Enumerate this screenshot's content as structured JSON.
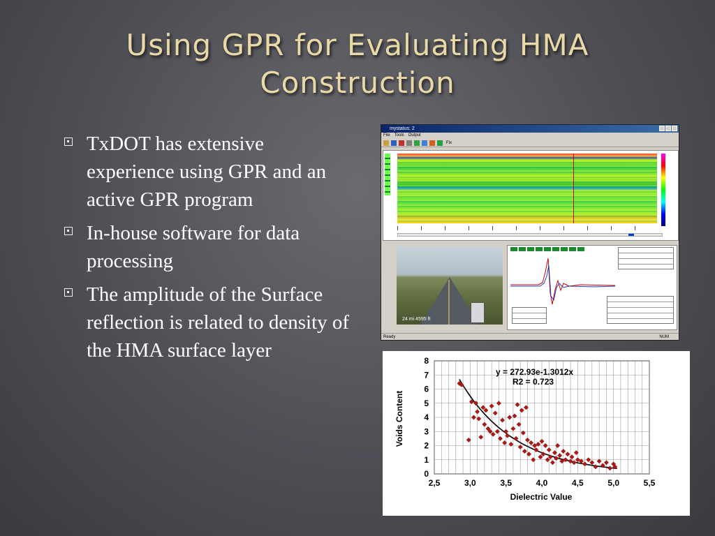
{
  "slide": {
    "title": "Using GPR for Evaluating HMA Construction",
    "bullets": [
      "TxDOT has extensive experience using GPR and an active GPR program",
      "In-house software for data processing",
      "The amplitude of the Surface reflection is related to density of the HMA surface layer"
    ]
  },
  "software": {
    "window_title": "mystatus: 2",
    "menu": [
      "File",
      "Tools",
      "Output"
    ],
    "toolbar_label": "Fix",
    "photo_caption": "24 mi  4595 ft",
    "status_left": "Ready",
    "status_right": "NUM",
    "colors": {
      "titlebar": "#0a246a",
      "window": "#d4d0c8"
    }
  },
  "chart_data": {
    "type": "scatter",
    "title": "",
    "xlabel": "Dielectric Value",
    "ylabel": "Voids Content",
    "xlim": [
      2.5,
      5.5
    ],
    "ylim": [
      0,
      8
    ],
    "xticks": [
      "2,5",
      "3,0",
      "3,5",
      "4,0",
      "4,5",
      "5,0",
      "5,5"
    ],
    "yticks": [
      "0",
      "1",
      "2",
      "3",
      "4",
      "5",
      "6",
      "7",
      "8"
    ],
    "grid": true,
    "annotations": [
      "y = 272.93e-1.3012x",
      "R2 = 0.723"
    ],
    "trendline": {
      "type": "exponential",
      "a": 272.93,
      "b": -1.3012,
      "x_range": [
        2.85,
        5.05
      ]
    },
    "marker_color": "#b01818",
    "points": [
      [
        2.85,
        6.4
      ],
      [
        2.88,
        6.3
      ],
      [
        2.98,
        2.4
      ],
      [
        3.02,
        5.1
      ],
      [
        3.05,
        4.0
      ],
      [
        3.08,
        5.0
      ],
      [
        3.1,
        4.4
      ],
      [
        3.12,
        3.9
      ],
      [
        3.15,
        2.6
      ],
      [
        3.18,
        4.7
      ],
      [
        3.2,
        3.5
      ],
      [
        3.22,
        4.5
      ],
      [
        3.25,
        3.2
      ],
      [
        3.28,
        3.0
      ],
      [
        3.3,
        4.8
      ],
      [
        3.32,
        2.8
      ],
      [
        3.35,
        4.3
      ],
      [
        3.38,
        3.0
      ],
      [
        3.4,
        5.0
      ],
      [
        3.42,
        2.5
      ],
      [
        3.45,
        3.8
      ],
      [
        3.48,
        2.2
      ],
      [
        3.5,
        3.0
      ],
      [
        3.52,
        2.7
      ],
      [
        3.55,
        4.0
      ],
      [
        3.57,
        2.1
      ],
      [
        3.6,
        3.2
      ],
      [
        3.62,
        4.1
      ],
      [
        3.64,
        2.5
      ],
      [
        3.66,
        4.9
      ],
      [
        3.68,
        3.5
      ],
      [
        3.7,
        1.9
      ],
      [
        3.72,
        4.5
      ],
      [
        3.74,
        2.9
      ],
      [
        3.76,
        1.6
      ],
      [
        3.78,
        4.7
      ],
      [
        3.8,
        2.4
      ],
      [
        3.82,
        1.4
      ],
      [
        3.85,
        2.2
      ],
      [
        3.88,
        1.0
      ],
      [
        3.9,
        2.0
      ],
      [
        3.92,
        1.7
      ],
      [
        3.95,
        2.1
      ],
      [
        3.98,
        1.2
      ],
      [
        4.0,
        2.3
      ],
      [
        4.02,
        1.4
      ],
      [
        4.05,
        2.0
      ],
      [
        4.08,
        1.0
      ],
      [
        4.1,
        1.7
      ],
      [
        4.12,
        1.2
      ],
      [
        4.15,
        0.8
      ],
      [
        4.18,
        1.5
      ],
      [
        4.2,
        1.1
      ],
      [
        4.22,
        2.0
      ],
      [
        4.25,
        1.3
      ],
      [
        4.28,
        0.9
      ],
      [
        4.3,
        1.6
      ],
      [
        4.33,
        1.0
      ],
      [
        4.36,
        1.4
      ],
      [
        4.4,
        0.9
      ],
      [
        4.42,
        1.2
      ],
      [
        4.45,
        0.8
      ],
      [
        4.48,
        1.5
      ],
      [
        4.5,
        1.0
      ],
      [
        4.55,
        0.9
      ],
      [
        4.6,
        0.7
      ],
      [
        4.65,
        1.0
      ],
      [
        4.7,
        0.8
      ],
      [
        4.75,
        0.5
      ],
      [
        4.8,
        0.9
      ],
      [
        4.85,
        0.6
      ],
      [
        4.9,
        0.8
      ],
      [
        4.95,
        0.4
      ],
      [
        5.0,
        0.7
      ],
      [
        5.02,
        0.5
      ]
    ]
  }
}
